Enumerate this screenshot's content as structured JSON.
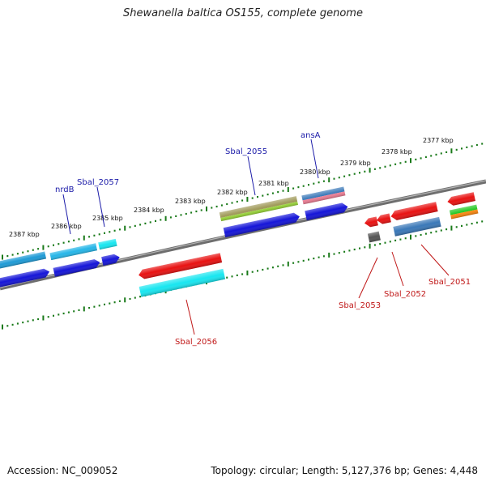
{
  "title": "Shewanella baltica OS155, complete genome",
  "footer": {
    "accession": "Accession: NC_009052",
    "topology": "Topology: circular; Length: 5,127,376 bp; Genes: 4,448"
  },
  "colors": {
    "backbone": "#777777",
    "tick": "#1a7a1a",
    "label_blue": "#1a1aa8",
    "label_red": "#c01818"
  },
  "kbp_labels": [
    "2387 kbp",
    "2386 kbp",
    "2385 kbp",
    "2384 kbp",
    "2383 kbp",
    "2382 kbp",
    "2381 kbp",
    "2380 kbp",
    "2379 kbp",
    "2378 kbp",
    "2377 kbp"
  ],
  "gene_labels": {
    "nrdB": "nrdB",
    "sbal_2057": "Sbal_2057",
    "sbal_2055": "Sbal_2055",
    "ansA": "ansA",
    "sbal_2056": "Sbal_2056",
    "sbal_2053": "Sbal_2053",
    "sbal_2052": "Sbal_2052",
    "sbal_2051": "Sbal_2051"
  }
}
